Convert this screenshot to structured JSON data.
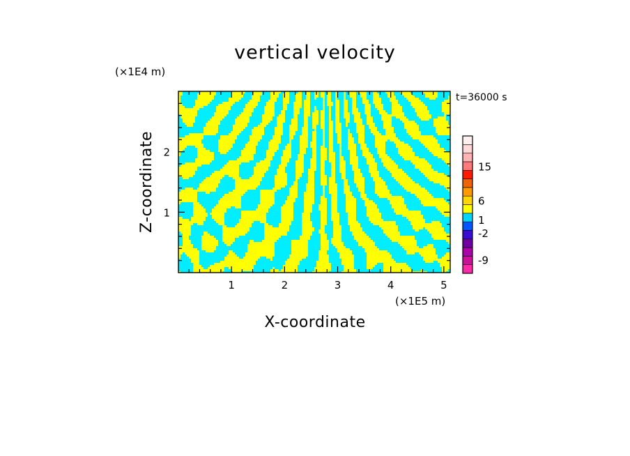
{
  "chart_data": {
    "type": "heatmap",
    "title": "vertical velocity",
    "xlabel": "X-coordinate",
    "ylabel": "Z-coordinate",
    "x_unit": "(×1E5 m)",
    "y_unit": "(×1E4 m)",
    "time_label": "t=36000 s",
    "xlim": [
      0,
      5.12
    ],
    "ylim": [
      0,
      3.0
    ],
    "x_ticks": [
      1,
      2,
      3,
      4,
      5
    ],
    "y_ticks": [
      1,
      2
    ],
    "x_tick_labels": [
      "1",
      "2",
      "3",
      "4",
      "5"
    ],
    "y_tick_labels": [
      "1",
      "2"
    ],
    "field_colors": {
      "positive": "#ffff00",
      "negative": "#00eeff"
    },
    "colorbar": {
      "colors": [
        "#ff2aa8",
        "#cc1199",
        "#aa00aa",
        "#6f009f",
        "#3a0bd2",
        "#0057ff",
        "#00d6ff",
        "#ffff00",
        "#ffd600",
        "#ff9a00",
        "#f06400",
        "#ff1a00",
        "#ff7b7b",
        "#ffb3b3",
        "#ffd8d8",
        "#fff0f0"
      ],
      "tick_labels": [
        {
          "label": "-9",
          "position": 0.095
        },
        {
          "label": "-2",
          "position": 0.29
        },
        {
          "label": "1",
          "position": 0.385
        },
        {
          "label": "6",
          "position": 0.525
        },
        {
          "label": "15",
          "position": 0.775
        }
      ]
    }
  }
}
